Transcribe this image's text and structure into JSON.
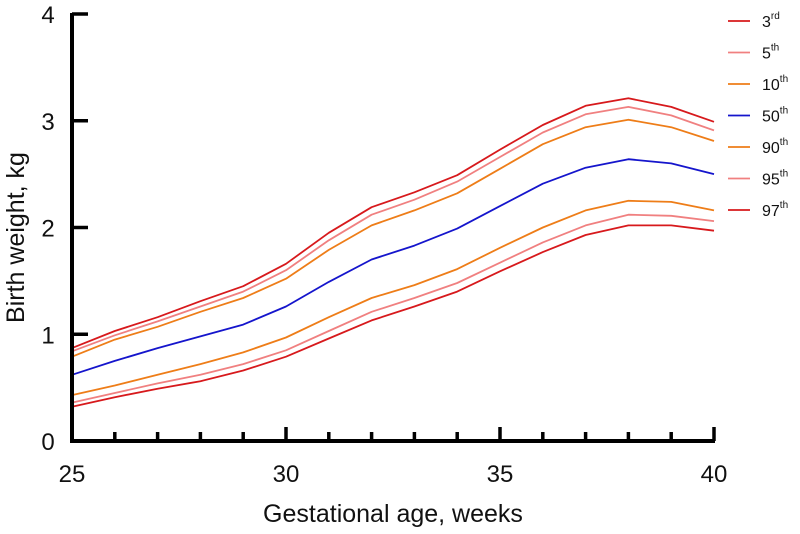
{
  "chart_data": {
    "type": "line",
    "title": "",
    "xlabel": "Gestational age, weeks",
    "ylabel": "Birth weight, kg",
    "xlim": [
      25,
      40
    ],
    "ylim": [
      0,
      4
    ],
    "x_ticks": [
      25,
      30,
      35,
      40
    ],
    "y_ticks": [
      0,
      1,
      2,
      3,
      4
    ],
    "x": [
      25,
      26,
      27,
      28,
      29,
      30,
      31,
      32,
      33,
      34,
      35,
      36,
      37,
      38,
      39,
      40
    ],
    "legend_position": "top-right",
    "series": [
      {
        "name": "3",
        "suffix": "rd",
        "color": "#d7191c",
        "values": [
          0.32,
          0.41,
          0.49,
          0.56,
          0.66,
          0.79,
          0.96,
          1.13,
          1.26,
          1.4,
          1.59,
          1.77,
          1.93,
          2.02,
          2.02,
          1.97
        ]
      },
      {
        "name": "5",
        "suffix": "th",
        "color": "#f08080",
        "values": [
          0.36,
          0.45,
          0.54,
          0.62,
          0.72,
          0.85,
          1.03,
          1.21,
          1.34,
          1.48,
          1.67,
          1.86,
          2.02,
          2.12,
          2.11,
          2.06
        ]
      },
      {
        "name": "10",
        "suffix": "th",
        "color": "#ee7d18",
        "values": [
          0.43,
          0.52,
          0.62,
          0.72,
          0.83,
          0.97,
          1.16,
          1.34,
          1.46,
          1.61,
          1.81,
          2.0,
          2.16,
          2.25,
          2.24,
          2.16
        ]
      },
      {
        "name": "50",
        "suffix": "th",
        "color": "#1515cc",
        "values": [
          0.62,
          0.75,
          0.87,
          0.98,
          1.09,
          1.26,
          1.49,
          1.7,
          1.83,
          1.99,
          2.2,
          2.41,
          2.56,
          2.64,
          2.6,
          2.5
        ]
      },
      {
        "name": "90",
        "suffix": "th",
        "color": "#ee7d18",
        "values": [
          0.79,
          0.95,
          1.07,
          1.21,
          1.34,
          1.52,
          1.79,
          2.02,
          2.16,
          2.32,
          2.55,
          2.78,
          2.94,
          3.01,
          2.94,
          2.81
        ]
      },
      {
        "name": "95",
        "suffix": "th",
        "color": "#f08080",
        "values": [
          0.84,
          0.99,
          1.12,
          1.26,
          1.4,
          1.6,
          1.88,
          2.12,
          2.26,
          2.43,
          2.66,
          2.89,
          3.06,
          3.13,
          3.05,
          2.91
        ]
      },
      {
        "name": "97",
        "suffix": "th",
        "color": "#d7191c",
        "values": [
          0.87,
          1.03,
          1.16,
          1.31,
          1.45,
          1.66,
          1.95,
          2.19,
          2.33,
          2.49,
          2.73,
          2.96,
          3.14,
          3.21,
          3.13,
          2.99
        ]
      }
    ]
  }
}
